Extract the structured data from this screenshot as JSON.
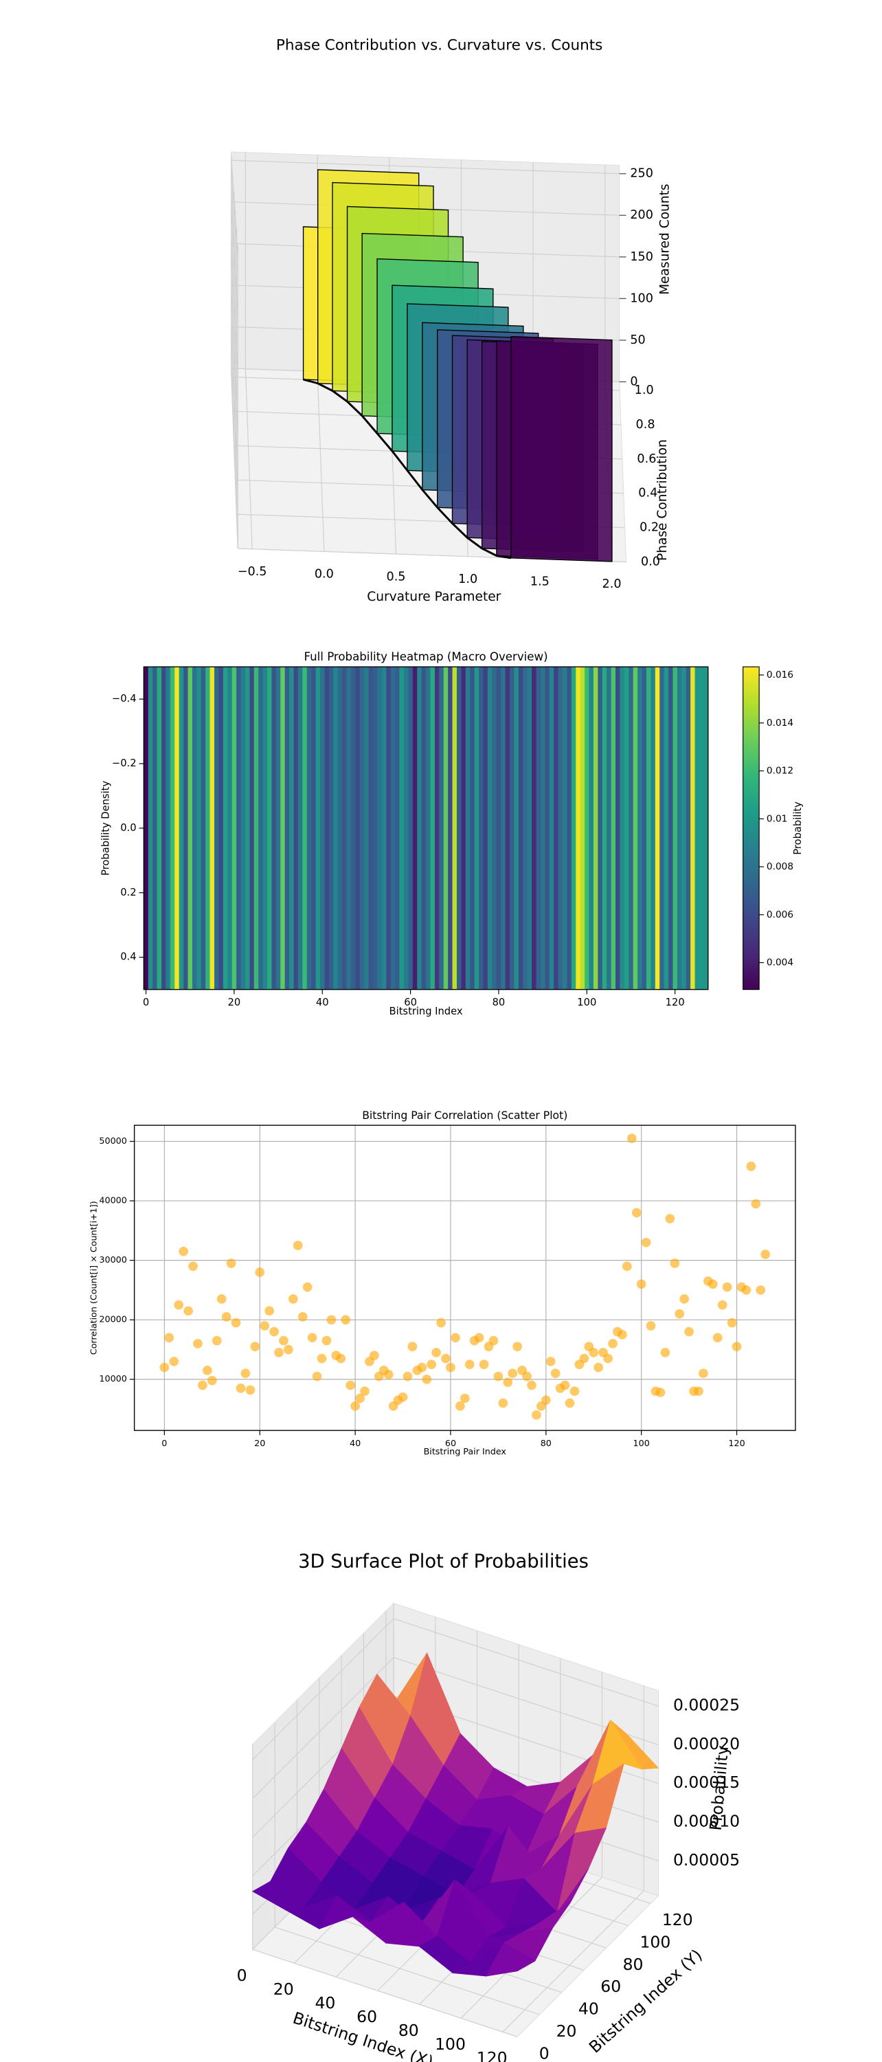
{
  "chart_data": [
    {
      "type": "bar3d",
      "title": "Phase Contribution vs. Curvature vs. Counts",
      "xlabel": "Curvature Parameter",
      "ylabel": "Phase Contribution",
      "zlabel": "Measured Counts",
      "x": [
        -0.1,
        0.0,
        0.1,
        0.2,
        0.3,
        0.4,
        0.5,
        0.6,
        0.7,
        0.8,
        0.9,
        1.0,
        1.1,
        1.2,
        1.3
      ],
      "y": [
        1.0,
        0.98,
        0.94,
        0.88,
        0.8,
        0.7,
        0.6,
        0.49,
        0.38,
        0.28,
        0.19,
        0.11,
        0.05,
        0.01,
        0.0
      ],
      "z": [
        180,
        250,
        240,
        220,
        200,
        185,
        170,
        165,
        160,
        165,
        170,
        175,
        180,
        185,
        190
      ],
      "colormap": "viridis",
      "color_by": "y",
      "xlim": [
        -0.6,
        2.1
      ],
      "ylim": [
        0,
        1.05
      ],
      "zlim": [
        0,
        260
      ],
      "xticks": [
        {
          "value": -0.5,
          "label": "−0.5"
        },
        {
          "value": 0,
          "label": "0.0"
        },
        0.5,
        {
          "value": 1,
          "label": "1.0"
        },
        1.5,
        {
          "value": 2,
          "label": "2.0"
        }
      ],
      "yticks": [
        {
          "value": 0,
          "label": "0.0"
        },
        0.2,
        0.4,
        0.6,
        0.8,
        {
          "value": 1,
          "label": "1.0"
        }
      ],
      "zticks": [
        0,
        50,
        100,
        150,
        200,
        250
      ]
    },
    {
      "type": "heatmap",
      "title": "Full Probability Heatmap (Macro Overview)",
      "xlabel": "Bitstring Index",
      "ylabel": "Probability Density",
      "colorbar_label": "Probability",
      "colormap": "viridis",
      "values": [
        0.003,
        0.0095,
        0.007,
        0.011,
        0.006,
        0.0085,
        0.012,
        0.0162,
        0.01,
        0.0065,
        0.013,
        0.008,
        0.0095,
        0.007,
        0.0115,
        0.016,
        0.0075,
        0.006,
        0.0105,
        0.009,
        0.0125,
        0.007,
        0.0085,
        0.01,
        0.006,
        0.012,
        0.0075,
        0.009,
        0.011,
        0.0065,
        0.008,
        0.013,
        0.007,
        0.0095,
        0.006,
        0.0085,
        0.012,
        0.0075,
        0.0065,
        0.01,
        0.008,
        0.006,
        0.007,
        0.009,
        0.0075,
        0.0065,
        0.008,
        0.007,
        0.006,
        0.0075,
        0.0085,
        0.0065,
        0.007,
        0.008,
        0.009,
        0.006,
        0.0075,
        0.007,
        0.01,
        0.0085,
        0.007,
        0.004,
        0.009,
        0.0065,
        0.008,
        0.011,
        0.005,
        0.0075,
        0.013,
        0.006,
        0.015,
        0.007,
        0.0045,
        0.0085,
        0.0065,
        0.01,
        0.007,
        0.0055,
        0.009,
        0.0075,
        0.0065,
        0.008,
        0.005,
        0.007,
        0.0095,
        0.006,
        0.0075,
        0.0085,
        0.0045,
        0.007,
        0.008,
        0.0065,
        0.009,
        0.0055,
        0.0075,
        0.0085,
        0.0065,
        0.011,
        0.016,
        0.015,
        0.012,
        0.009,
        0.014,
        0.007,
        0.011,
        0.008,
        0.0125,
        0.006,
        0.0095,
        0.0105,
        0.0075,
        0.013,
        0.0085,
        0.007,
        0.0115,
        0.009,
        0.0162,
        0.0075,
        0.01,
        0.0065,
        0.012,
        0.0085,
        0.0095,
        0.007,
        0.0158,
        0.01,
        0.01,
        0.01
      ],
      "clim": [
        0.00288,
        0.01634
      ],
      "cticks": [
        0.004,
        0.006,
        0.008,
        0.01,
        0.012,
        0.014,
        0.016
      ],
      "xlim": [
        -0.5,
        127.5
      ],
      "xticks": [
        0,
        20,
        40,
        60,
        80,
        100,
        120
      ],
      "ylim": [
        0.5,
        -0.5
      ],
      "yticks": [
        {
          "value": -0.4,
          "label": "−0.4"
        },
        {
          "value": -0.2,
          "label": "−0.2"
        },
        {
          "value": 0,
          "label": "0.0"
        },
        0.2,
        0.4
      ]
    },
    {
      "type": "scatter",
      "title": "Bitstring Pair Correlation (Scatter Plot)",
      "xlabel": "Bitstring Pair Index",
      "ylabel": "Correlation (Count[i] × Count[i+1])",
      "color": "#ffa500",
      "grid": true,
      "x": [
        0,
        1,
        2,
        3,
        4,
        5,
        6,
        7,
        8,
        9,
        10,
        11,
        12,
        13,
        14,
        15,
        16,
        17,
        18,
        19,
        20,
        21,
        22,
        23,
        24,
        25,
        26,
        27,
        28,
        29,
        30,
        31,
        32,
        33,
        34,
        35,
        36,
        37,
        38,
        39,
        40,
        41,
        42,
        43,
        44,
        45,
        46,
        47,
        48,
        49,
        50,
        51,
        52,
        53,
        54,
        55,
        56,
        57,
        58,
        59,
        60,
        61,
        62,
        63,
        64,
        65,
        66,
        67,
        68,
        69,
        70,
        71,
        72,
        73,
        74,
        75,
        76,
        77,
        78,
        79,
        80,
        81,
        82,
        83,
        84,
        85,
        86,
        87,
        88,
        89,
        90,
        91,
        92,
        93,
        94,
        95,
        96,
        97,
        98,
        99,
        100,
        101,
        102,
        103,
        104,
        105,
        106,
        107,
        108,
        109,
        110,
        111,
        112,
        113,
        114,
        115,
        116,
        117,
        118,
        119,
        120,
        121,
        122,
        123,
        124,
        125,
        126
      ],
      "values": [
        12000,
        17000,
        13000,
        22500,
        31500,
        21500,
        29000,
        16000,
        9000,
        11500,
        9800,
        16500,
        23500,
        20500,
        29500,
        19500,
        8500,
        11000,
        8200,
        15500,
        28000,
        19000,
        21500,
        18000,
        14500,
        16500,
        15000,
        23500,
        32500,
        20500,
        25500,
        17000,
        10500,
        13500,
        16500,
        20000,
        14000,
        13500,
        20000,
        9000,
        5500,
        6800,
        8000,
        13000,
        14000,
        10500,
        11500,
        10800,
        5500,
        6500,
        7000,
        10500,
        15500,
        11500,
        12000,
        10000,
        12500,
        14500,
        19500,
        13500,
        12000,
        17000,
        5500,
        6800,
        12500,
        16500,
        17000,
        12500,
        15500,
        16500,
        10500,
        6000,
        9500,
        11000,
        15500,
        11500,
        10500,
        9000,
        4000,
        5500,
        6500,
        13000,
        11000,
        8500,
        9000,
        6000,
        8000,
        12500,
        13500,
        15500,
        14500,
        12000,
        14500,
        13500,
        16000,
        18000,
        17500,
        29000,
        50500,
        38000,
        26000,
        33000,
        19000,
        8000,
        7800,
        14500,
        37000,
        29500,
        21000,
        23500,
        18000,
        8000,
        8000,
        11000,
        26500,
        26000,
        17000,
        22500,
        25500,
        19500,
        15500,
        25500,
        25000,
        45800,
        39500,
        25000,
        31000
      ],
      "xlim": [
        -6.3,
        132.3
      ],
      "ylim": [
        1400,
        52700
      ],
      "xticks": [
        0,
        20,
        40,
        60,
        80,
        100,
        120
      ],
      "yticks": [
        10000,
        20000,
        30000,
        40000,
        50000
      ]
    },
    {
      "type": "surface",
      "title": "3D Surface Plot of Probabilities",
      "xlabel": "Bitstring Index (X)",
      "ylabel": "Bitstring Index (Y)",
      "zlabel": "Probability",
      "colormap": "plasma",
      "x": [
        0,
        16,
        32,
        48,
        64,
        80,
        96,
        112,
        127
      ],
      "y": [
        0,
        16,
        32,
        48,
        64,
        80,
        96,
        112,
        127
      ],
      "z": [
        [
          8e-05,
          7e-05,
          6e-05,
          9e-05,
          7e-05,
          8e-05,
          6e-05,
          7e-05,
          9e-05
        ],
        [
          7e-05,
          5e-05,
          8e-05,
          6e-05,
          0.0001,
          7e-05,
          5e-05,
          9e-05,
          8e-05
        ],
        [
          9e-05,
          6e-05,
          4e-05,
          7e-05,
          5e-05,
          0.00012,
          6e-05,
          8e-05,
          0.0001
        ],
        [
          0.0001,
          7e-05,
          5e-05,
          3e-05,
          6e-05,
          8e-05,
          5e-05,
          7e-05,
          0.00011
        ],
        [
          0.00012,
          8e-05,
          6e-05,
          5e-05,
          4e-05,
          7e-05,
          9e-05,
          6e-05,
          0.00013
        ],
        [
          0.00015,
          0.0001,
          7e-05,
          6e-05,
          5e-05,
          0.00012,
          8e-05,
          0.00014,
          0.00016
        ],
        [
          0.00018,
          0.00012,
          9e-05,
          7e-05,
          8e-05,
          6e-05,
          0.0001,
          0.00018,
          0.00022
        ],
        [
          0.0002,
          0.00016,
          0.00011,
          8e-05,
          0.0001,
          9e-05,
          0.00014,
          0.00024,
          0.00019
        ],
        [
          0.00014,
          0.00022,
          0.00013,
          0.0001,
          9e-05,
          0.00011,
          0.00016,
          0.0002,
          0.00017
        ]
      ],
      "xlim": [
        0,
        127
      ],
      "ylim": [
        0,
        127
      ],
      "zlim": [
        5e-06,
        0.00027
      ],
      "xticks": [
        0,
        20,
        40,
        60,
        80,
        100,
        120
      ],
      "yticks": [
        0,
        20,
        40,
        60,
        80,
        100,
        120
      ],
      "zticks": [
        5e-05,
        {
          "value": 0.0001,
          "label": "0.00010"
        },
        0.00015,
        {
          "value": 0.0002,
          "label": "0.00020"
        },
        0.00025
      ]
    }
  ]
}
